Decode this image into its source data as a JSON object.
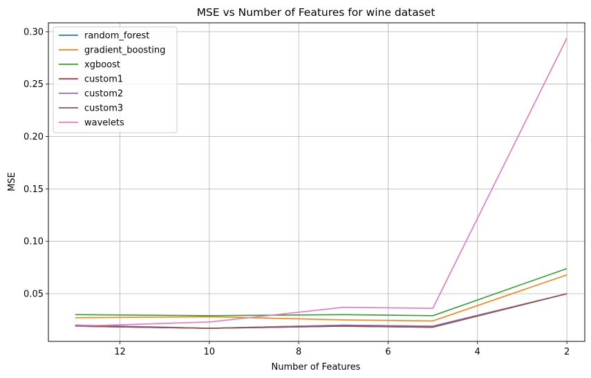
{
  "chart_data": {
    "type": "line",
    "title": "MSE vs Number of Features for wine dataset",
    "xlabel": "Number of Features",
    "ylabel": "MSE",
    "x_inverted": true,
    "xlim": [
      13.6,
      1.6
    ],
    "ylim": [
      0.0045,
      0.3085
    ],
    "xticks": [
      12,
      10,
      8,
      6,
      4,
      2
    ],
    "xtick_labels": [
      "12",
      "10",
      "8",
      "6",
      "4",
      "2"
    ],
    "yticks": [
      0.05,
      0.1,
      0.15,
      0.2,
      0.25,
      0.3
    ],
    "ytick_labels": [
      "0.05",
      "0.10",
      "0.15",
      "0.20",
      "0.25",
      "0.30"
    ],
    "grid": true,
    "legend_position": "top-left",
    "x": [
      13,
      10,
      7,
      5,
      2
    ],
    "series": [
      {
        "name": "random_forest",
        "color": "#1f77b4",
        "values": [
          0.02,
          0.017,
          0.02,
          0.019,
          0.05
        ]
      },
      {
        "name": "gradient_boosting",
        "color": "#ff7f0e",
        "values": [
          0.027,
          0.028,
          0.025,
          0.024,
          0.068
        ]
      },
      {
        "name": "xgboost",
        "color": "#2ca02c",
        "values": [
          0.03,
          0.029,
          0.03,
          0.029,
          0.074
        ]
      },
      {
        "name": "custom1",
        "color": "#d62728",
        "values": [
          0.019,
          0.017,
          0.019,
          0.018,
          0.05
        ]
      },
      {
        "name": "custom2",
        "color": "#9467bd",
        "values": [
          0.02,
          0.017,
          0.02,
          0.019,
          0.05
        ]
      },
      {
        "name": "custom3",
        "color": "#8c564b",
        "values": [
          0.019,
          0.017,
          0.019,
          0.018,
          0.05
        ]
      },
      {
        "name": "wavelets",
        "color": "#e377c2",
        "values": [
          0.019,
          0.023,
          0.037,
          0.036,
          0.294
        ]
      }
    ]
  }
}
